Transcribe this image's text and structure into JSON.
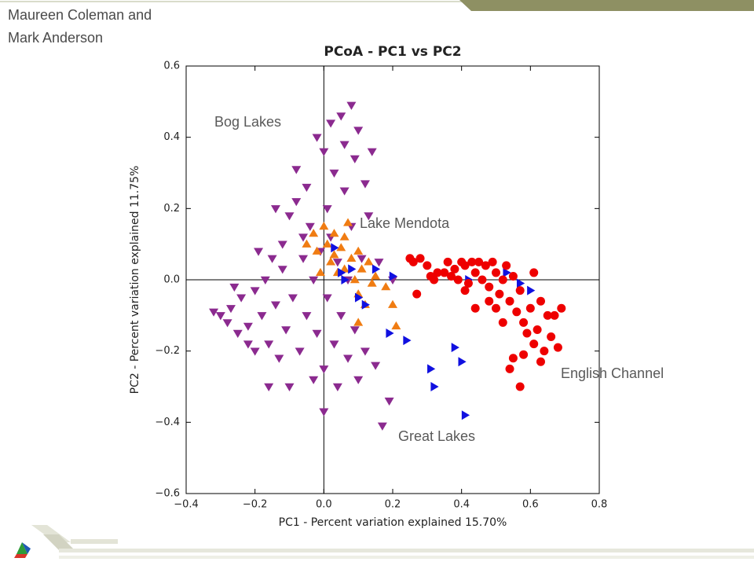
{
  "author": [
    "Maureen Coleman and",
    "Mark Anderson"
  ],
  "chart_data": {
    "type": "scatter",
    "title": "PCoA - PC1 vs PC2",
    "x_label": "PC1 - Percent variation explained 15.70%",
    "y_label": "PC2 - Percent variation explained 11.75%",
    "annotations": [
      "Bog Lakes",
      "Lake Mendota",
      "English Channel",
      "Great Lakes"
    ],
    "xlim": [
      -0.4,
      0.8
    ],
    "xticks": [
      {
        "value": -0.4,
        "label": "−0.4"
      },
      {
        "value": -0.2,
        "label": "−0.2"
      },
      {
        "value": 0,
        "label": "0.0"
      },
      0.2,
      0.4,
      0.6,
      0.8
    ],
    "ylim": [
      -0.6,
      0.6
    ],
    "yticks": [
      {
        "value": -0.6,
        "label": "−0.6"
      },
      {
        "value": -0.4,
        "label": "−0.4"
      },
      {
        "value": -0.2,
        "label": "−0.2"
      },
      {
        "value": 0,
        "label": "0.0"
      },
      0.2,
      0.4,
      0.6
    ],
    "zero_lines": true,
    "series": [
      {
        "color": "#8b2a8f",
        "marker": "v",
        "x": [
          -0.32,
          -0.3,
          -0.28,
          -0.27,
          -0.25,
          -0.24,
          -0.22,
          -0.2,
          -0.2,
          -0.18,
          -0.17,
          -0.16,
          -0.15,
          -0.14,
          -0.13,
          -0.12,
          -0.12,
          -0.11,
          -0.1,
          -0.1,
          -0.09,
          -0.08,
          -0.08,
          -0.07,
          -0.06,
          -0.05,
          -0.05,
          -0.04,
          -0.03,
          -0.03,
          -0.02,
          -0.02,
          -0.01,
          0.0,
          0.0,
          0.0,
          0.01,
          0.01,
          0.02,
          0.02,
          0.03,
          0.03,
          0.04,
          0.04,
          0.05,
          0.05,
          0.06,
          0.06,
          0.07,
          0.07,
          0.08,
          0.08,
          0.09,
          0.09,
          0.1,
          0.1,
          0.11,
          0.12,
          0.12,
          0.13,
          0.14,
          0.15,
          0.16,
          0.17,
          0.19,
          0.2,
          -0.22,
          -0.19,
          -0.16,
          -0.26,
          -0.06,
          -0.14
        ],
        "y": [
          -0.09,
          -0.1,
          -0.12,
          -0.08,
          -0.15,
          -0.05,
          -0.13,
          -0.2,
          -0.03,
          -0.1,
          0.0,
          -0.18,
          0.06,
          -0.07,
          -0.22,
          0.1,
          0.03,
          -0.14,
          -0.3,
          0.18,
          -0.05,
          0.22,
          0.31,
          -0.2,
          0.06,
          0.26,
          -0.1,
          0.15,
          -0.28,
          0.0,
          0.4,
          -0.15,
          0.08,
          0.36,
          -0.25,
          -0.37,
          0.2,
          -0.05,
          0.44,
          0.12,
          -0.18,
          0.3,
          0.05,
          -0.3,
          0.46,
          -0.1,
          0.25,
          0.38,
          0.0,
          -0.22,
          0.49,
          0.15,
          -0.14,
          0.34,
          0.42,
          -0.28,
          0.06,
          0.27,
          -0.2,
          0.18,
          0.36,
          -0.24,
          0.05,
          -0.41,
          -0.34,
          0.0,
          -0.18,
          0.08,
          -0.3,
          -0.02,
          0.12,
          0.2
        ]
      },
      {
        "color": "#f07c12",
        "marker": "^",
        "x": [
          -0.05,
          -0.03,
          -0.02,
          0.0,
          0.01,
          0.02,
          0.03,
          0.04,
          0.05,
          0.06,
          0.06,
          0.07,
          0.08,
          0.09,
          0.1,
          0.1,
          0.11,
          0.12,
          0.13,
          0.15,
          0.18,
          0.2,
          0.21,
          0.1,
          0.03,
          -0.01,
          0.14
        ],
        "y": [
          0.1,
          0.13,
          0.08,
          0.15,
          0.1,
          0.05,
          0.13,
          0.02,
          0.09,
          0.12,
          0.03,
          0.16,
          0.06,
          0.0,
          0.08,
          -0.04,
          0.03,
          -0.07,
          0.05,
          0.01,
          -0.02,
          -0.07,
          -0.13,
          -0.12,
          0.07,
          0.02,
          -0.01
        ]
      },
      {
        "color": "#1010e0",
        "marker": ">",
        "x": [
          0.03,
          0.05,
          0.06,
          0.08,
          0.1,
          0.12,
          0.15,
          0.2,
          0.19,
          0.24,
          0.31,
          0.32,
          0.38,
          0.4,
          0.41,
          0.53,
          0.57,
          0.6,
          0.42
        ],
        "y": [
          0.09,
          0.02,
          0.0,
          0.03,
          -0.05,
          -0.07,
          0.03,
          0.01,
          -0.15,
          -0.17,
          -0.25,
          -0.3,
          -0.19,
          -0.23,
          -0.38,
          0.02,
          -0.01,
          -0.03,
          0.0
        ]
      },
      {
        "color": "#ee0000",
        "marker": "o",
        "x": [
          0.25,
          0.26,
          0.28,
          0.3,
          0.31,
          0.32,
          0.33,
          0.35,
          0.36,
          0.37,
          0.38,
          0.39,
          0.4,
          0.41,
          0.42,
          0.43,
          0.44,
          0.45,
          0.46,
          0.47,
          0.48,
          0.49,
          0.5,
          0.51,
          0.52,
          0.53,
          0.54,
          0.55,
          0.56,
          0.57,
          0.58,
          0.6,
          0.61,
          0.62,
          0.63,
          0.64,
          0.65,
          0.66,
          0.67,
          0.69,
          0.68,
          0.55,
          0.54,
          0.57,
          0.58,
          0.52,
          0.5,
          0.48,
          0.44,
          0.41,
          0.27,
          0.61,
          0.59,
          0.63
        ],
        "y": [
          0.06,
          0.05,
          0.06,
          0.04,
          0.01,
          0.0,
          0.02,
          0.02,
          0.05,
          0.01,
          0.03,
          0.0,
          0.05,
          0.04,
          -0.01,
          0.05,
          0.02,
          0.05,
          0.0,
          0.04,
          -0.02,
          0.05,
          0.02,
          -0.04,
          0.0,
          0.04,
          -0.06,
          0.01,
          -0.09,
          -0.03,
          -0.12,
          -0.08,
          -0.18,
          -0.14,
          -0.06,
          -0.2,
          -0.1,
          -0.16,
          -0.1,
          -0.08,
          -0.19,
          -0.22,
          -0.25,
          -0.3,
          -0.21,
          -0.12,
          -0.08,
          -0.06,
          -0.08,
          -0.03,
          -0.04,
          0.02,
          -0.15,
          -0.23
        ]
      }
    ]
  }
}
